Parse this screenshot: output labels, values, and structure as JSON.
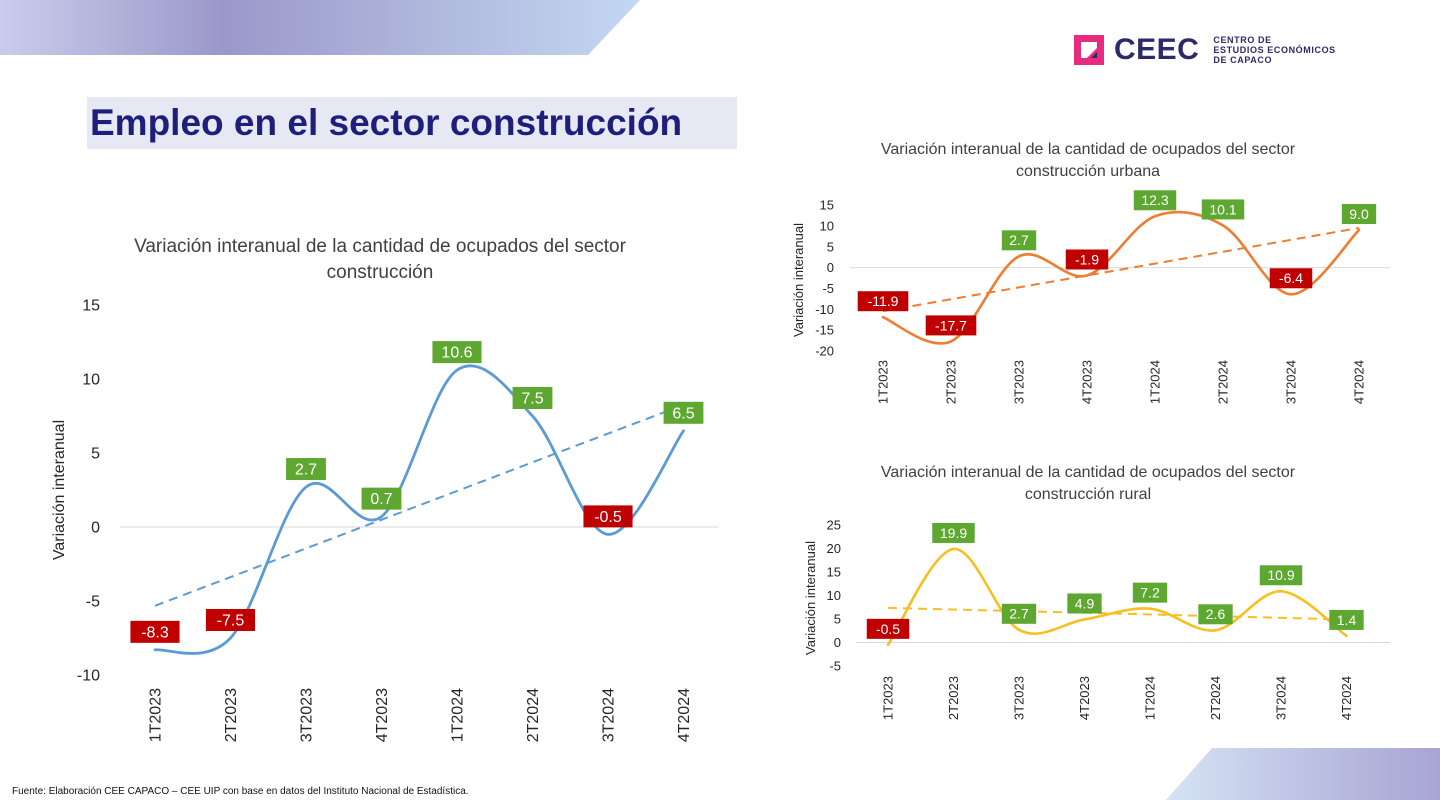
{
  "header": {
    "logo_name": "CEEC",
    "logo_subtitle": [
      "CENTRO DE",
      "ESTUDIOS ECONÓMICOS",
      "DE CAPACO"
    ],
    "colors": {
      "logo_pink": "#e62b80",
      "logo_navy": "#2b2a6b",
      "title_text": "#1d1f7a",
      "title_bg": "#e6e8f4"
    }
  },
  "page_title": "Empleo en el sector construcción",
  "footer": {
    "source": "Fuente: Elaboración CEE CAPACO – CEE UIP con base en datos del Instituto Nacional de Estadística."
  },
  "chart_data": [
    {
      "id": "main",
      "type": "line",
      "title_lines": [
        "Variación interanual de la cantidad de ocupados del sector",
        "construcción"
      ],
      "xlabel": "",
      "ylabel": "Variación interanual",
      "categories": [
        "1T2023",
        "2T2023",
        "3T2023",
        "4T2023",
        "1T2024",
        "2T2024",
        "3T2024",
        "4T2024"
      ],
      "series": [
        {
          "values": [
            -8.3,
            -7.5,
            2.7,
            0.7,
            10.6,
            7.5,
            -0.5,
            6.5
          ],
          "color": "#5b9bd5",
          "smooth": true
        }
      ],
      "data_labels": [
        "-8.3",
        "-7.5",
        "2.7",
        "0.7",
        "10.6",
        "7.5",
        "-0.5",
        "6.5"
      ],
      "trendline": {
        "type": "linear",
        "dashed": true,
        "color": "#5b9bd5"
      },
      "ylim": [
        -10,
        15
      ],
      "yticks": [
        "-10",
        "-5",
        "0",
        "5",
        "10",
        "15"
      ],
      "grid": false,
      "label_colors": {
        "positive": "#5ea832",
        "negative": "#c00000"
      }
    },
    {
      "id": "urbana",
      "type": "line",
      "title_lines": [
        "Variación interanual de la cantidad de ocupados del sector",
        "construcción urbana"
      ],
      "xlabel": "",
      "ylabel": "Variación interanual",
      "categories": [
        "1T2023",
        "2T2023",
        "3T2023",
        "4T2023",
        "1T2024",
        "2T2024",
        "3T2024",
        "4T2024"
      ],
      "series": [
        {
          "values": [
            -11.9,
            -17.7,
            2.7,
            -1.9,
            12.3,
            10.1,
            -6.4,
            9.0
          ],
          "color": "#ed7d31",
          "smooth": true
        }
      ],
      "data_labels": [
        "-11.9",
        "-17.7",
        "2.7",
        "-1.9",
        "12.3",
        "10.1",
        "-6.4",
        "9.0"
      ],
      "trendline": {
        "type": "linear",
        "dashed": true,
        "color": "#ed7d31"
      },
      "ylim": [
        -20,
        15
      ],
      "yticks": [
        "-20",
        "-15",
        "-10",
        "-5",
        "0",
        "5",
        "10",
        "15"
      ],
      "grid": false,
      "label_colors": {
        "positive": "#5ea832",
        "negative": "#c00000"
      }
    },
    {
      "id": "rural",
      "type": "line",
      "title_lines": [
        "Variación interanual de la cantidad de ocupados del sector",
        "construcción rural"
      ],
      "xlabel": "",
      "ylabel": "Variación interanual",
      "categories": [
        "1T2023",
        "2T2023",
        "3T2023",
        "4T2023",
        "1T2024",
        "2T2024",
        "3T2024",
        "4T2024"
      ],
      "series": [
        {
          "values": [
            -0.5,
            19.9,
            2.7,
            4.9,
            7.2,
            2.6,
            10.9,
            1.4
          ],
          "color": "#f6c022",
          "smooth": true
        }
      ],
      "data_labels": [
        "-0.5",
        "19.9",
        "2.7",
        "4.9",
        "7.2",
        "2.6",
        "10.9",
        "1.4"
      ],
      "trendline": {
        "type": "linear",
        "dashed": true,
        "color": "#f6c022"
      },
      "ylim": [
        -5,
        25
      ],
      "yticks": [
        "-5",
        "0",
        "5",
        "10",
        "15",
        "20",
        "25"
      ],
      "grid": false,
      "label_colors": {
        "positive": "#5ea832",
        "negative": "#c00000"
      }
    }
  ]
}
